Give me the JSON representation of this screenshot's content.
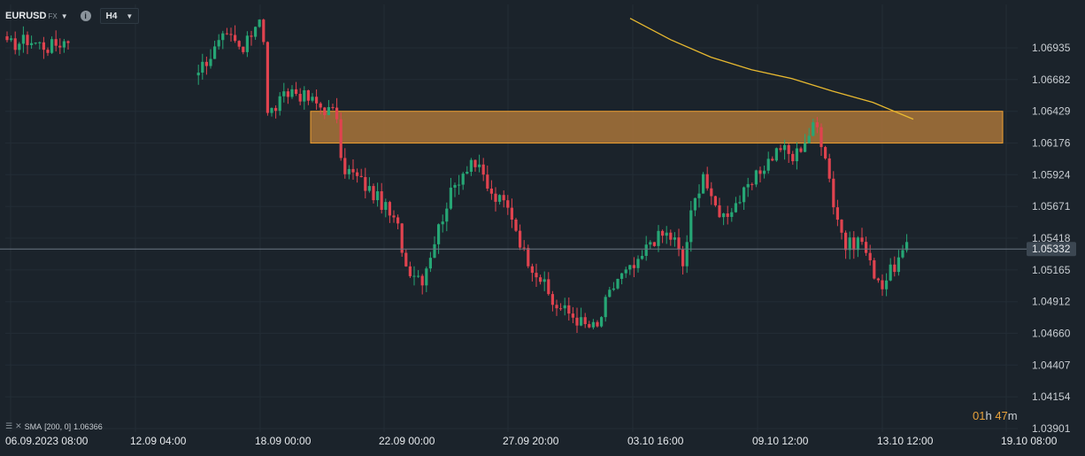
{
  "symbol": "EURUSD",
  "market": "FX",
  "timeframe": "H4",
  "indicator": {
    "label": "SMA",
    "params": "[200, 0]",
    "value": "1.06366",
    "color": "#e8b930"
  },
  "countdown": {
    "hours": "01",
    "hours_unit": "h",
    "minutes": "47",
    "minutes_unit": "m"
  },
  "colors": {
    "background": "#1b232b",
    "grid": "#232d36",
    "up": "#26a675",
    "down": "#e0434f",
    "zone_fill": "#a8743a",
    "zone_border": "#f0a030",
    "current_price_line": "#6b7682",
    "price_tag": "#3c4752"
  },
  "chart_data": {
    "type": "candlestick",
    "title": "",
    "y_ticks": [
      1.06935,
      1.06682,
      1.06429,
      1.06176,
      1.05924,
      1.05671,
      1.05418,
      1.05165,
      1.04912,
      1.0466,
      1.04407,
      1.04154,
      1.03901
    ],
    "y_tick_labels": [
      "1.06935",
      "1.06682",
      "1.06429",
      "1.06176",
      "1.05924",
      "1.05671",
      "1.05418",
      "1.05165",
      "1.04912",
      "1.04660",
      "1.04407",
      "1.04154",
      "1.03901"
    ],
    "x_labels": [
      "06.09.2023  08:00",
      "12.09  04:00",
      "18.09  00:00",
      "22.09  00:00",
      "27.09  20:00",
      "03.10  16:00",
      "09.10  12:00",
      "13.10  12:00",
      "19.10  08:00"
    ],
    "current_price": 1.05332,
    "current_price_label": "1.05332",
    "resistance_zone": {
      "low": 1.06176,
      "high": 1.06429
    },
    "sma_200": [
      1.0717,
      1.07,
      1.0686,
      1.0676,
      1.0669,
      1.0659,
      1.065,
      1.06366
    ],
    "anchor_points": [
      [
        0,
        1.0695
      ],
      [
        5,
        1.07
      ],
      [
        10,
        1.0694
      ],
      [
        15,
        1.07
      ],
      [
        30,
        1.07
      ],
      [
        31,
        1.065
      ],
      [
        32,
        1.064
      ],
      [
        33,
        1.063
      ],
      [
        40,
        1.066
      ],
      [
        44,
        1.067
      ],
      [
        48,
        1.068
      ],
      [
        53,
        1.07
      ],
      [
        55,
        1.07
      ],
      [
        58,
        1.069
      ],
      [
        62,
        1.072
      ],
      [
        63,
        1.07
      ],
      [
        64,
        1.064
      ],
      [
        70,
        1.066
      ],
      [
        78,
        1.0645
      ],
      [
        81,
        1.064
      ],
      [
        82,
        1.06
      ],
      [
        86,
        1.059
      ],
      [
        92,
        1.057
      ],
      [
        96,
        1.055
      ],
      [
        98,
        1.052
      ],
      [
        102,
        1.051
      ],
      [
        106,
        1.055
      ],
      [
        108,
        1.057
      ],
      [
        111,
        1.059
      ],
      [
        114,
        1.0605
      ],
      [
        117,
        1.059
      ],
      [
        119,
        1.0575
      ],
      [
        122,
        1.057
      ],
      [
        124,
        1.056
      ],
      [
        127,
        1.053
      ],
      [
        131,
        1.051
      ],
      [
        134,
        1.049
      ],
      [
        139,
        1.048
      ],
      [
        142,
        1.0472
      ],
      [
        145,
        1.047
      ],
      [
        147,
        1.049
      ],
      [
        150,
        1.051
      ],
      [
        155,
        1.052
      ],
      [
        158,
        1.054
      ],
      [
        162,
        1.0545
      ],
      [
        164,
        1.054
      ],
      [
        166,
        1.052
      ],
      [
        168,
        1.056
      ],
      [
        171,
        1.0595
      ],
      [
        173,
        1.057
      ],
      [
        176,
        1.056
      ],
      [
        179,
        1.057
      ],
      [
        182,
        1.058
      ],
      [
        186,
        1.06
      ],
      [
        190,
        1.0615
      ],
      [
        193,
        1.0605
      ],
      [
        198,
        1.063
      ],
      [
        199,
        1.063
      ],
      [
        201,
        1.061
      ],
      [
        203,
        1.057
      ],
      [
        206,
        1.0535
      ],
      [
        209,
        1.054
      ],
      [
        210,
        1.054
      ],
      [
        212,
        1.052
      ],
      [
        215,
        1.0505
      ],
      [
        218,
        1.052
      ],
      [
        221,
        1.0533
      ]
    ]
  }
}
